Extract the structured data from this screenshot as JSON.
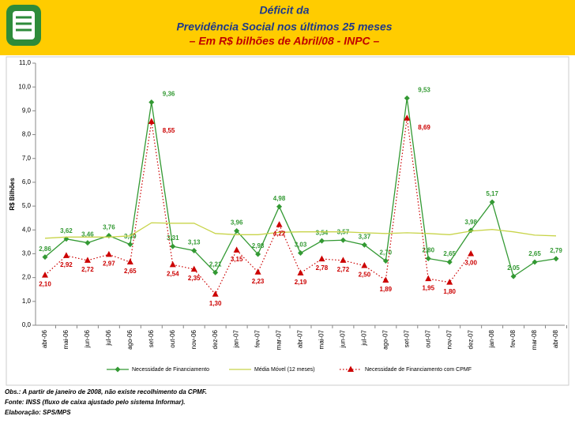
{
  "chart_data": {
    "type": "line",
    "title_lines": [
      "Déficit da",
      "Previdência Social nos últimos 25 meses"
    ],
    "subtitle": "– Em R$ bilhões de Abril/08 - INPC –",
    "y_label": "R$ Bilhões",
    "categories": [
      "abr-06",
      "mai-06",
      "jun-06",
      "jul-06",
      "ago-06",
      "set-06",
      "out-06",
      "nov-06",
      "dez-06",
      "jan-07",
      "fev-07",
      "mar-07",
      "abr-07",
      "mai-07",
      "jun-07",
      "jul-07",
      "ago-07",
      "set-07",
      "out-07",
      "nov-07",
      "dez-07",
      "jan-08",
      "fev-08",
      "mar-08",
      "abr-08"
    ],
    "series": [
      {
        "name": "Necessidade de Financiamento",
        "color": "#339933",
        "marker": "diamond",
        "dash": false,
        "values": [
          2.86,
          3.62,
          3.46,
          3.76,
          3.39,
          9.36,
          3.31,
          3.13,
          2.21,
          3.96,
          2.98,
          4.98,
          3.03,
          3.54,
          3.57,
          3.37,
          2.7,
          9.53,
          2.8,
          2.65,
          3.98,
          5.17,
          2.05,
          2.65,
          2.79
        ],
        "value_labels": [
          "2,86",
          "3,62",
          "3,46",
          "3,76",
          "3,39",
          "9,36",
          "3,31",
          "3,13",
          "2,21",
          "3,96",
          "2,98",
          "4,98",
          "3,03",
          "3,54",
          "3,57",
          "3,37",
          "2,70",
          "9,53",
          "2,80",
          "2,65",
          "3,98",
          "5,17",
          "2,05",
          "2,65",
          "2,79"
        ]
      },
      {
        "name": "Média Móvel (12 meses)",
        "color": "#c8d44a",
        "marker": "dash",
        "dash": false,
        "values": [
          3.65,
          3.7,
          3.7,
          3.7,
          3.75,
          4.3,
          4.28,
          4.28,
          3.85,
          3.8,
          3.8,
          3.9,
          3.92,
          3.92,
          3.92,
          3.88,
          3.85,
          3.88,
          3.85,
          3.8,
          3.95,
          4.02,
          3.92,
          3.78,
          3.75
        ]
      },
      {
        "name": "Necessidade de Financiamento com CPMF",
        "color": "#cc0000",
        "marker": "triangle",
        "dash": true,
        "values": [
          2.1,
          2.92,
          2.72,
          2.97,
          2.65,
          8.55,
          2.54,
          2.35,
          1.3,
          3.15,
          2.23,
          4.22,
          2.19,
          2.78,
          2.72,
          2.5,
          1.89,
          8.69,
          1.95,
          1.8,
          3.0,
          null,
          null,
          null,
          null
        ],
        "value_labels": [
          "2,10",
          "2,92",
          "2,72",
          "2,97",
          "2,65",
          "8,55",
          "2,54",
          "2,35",
          "1,30",
          "3,15",
          "2,23",
          "4,22",
          "2,19",
          "2,78",
          "2,72",
          "2,50",
          "1,89",
          "8,69",
          "1,95",
          "1,80",
          "3,00",
          null,
          null,
          null,
          null
        ]
      }
    ],
    "ylim": [
      0,
      11
    ],
    "yticks": [
      {
        "value": 0,
        "label": "0,0"
      },
      {
        "value": 1,
        "label": "1,0"
      },
      {
        "value": 2,
        "label": "2,0"
      },
      {
        "value": 3,
        "label": "3,0"
      },
      {
        "value": 4,
        "label": "4,0"
      },
      {
        "value": 5,
        "label": "5,0"
      },
      {
        "value": 6,
        "label": "6,0"
      },
      {
        "value": 7,
        "label": "7,0"
      },
      {
        "value": 8,
        "label": "8,0"
      },
      {
        "value": 9,
        "label": "9,0"
      },
      {
        "value": 10,
        "label": "10,0"
      },
      {
        "value": 11,
        "label": "11,0"
      }
    ],
    "notes": [
      "Obs.: A partir de janeiro de 2008, não existe recolhimento da CPMF.",
      "Fonte: INSS (fluxo de caixa ajustado pelo sistema Informar).",
      "Elaboração: SPS/MPS"
    ]
  }
}
